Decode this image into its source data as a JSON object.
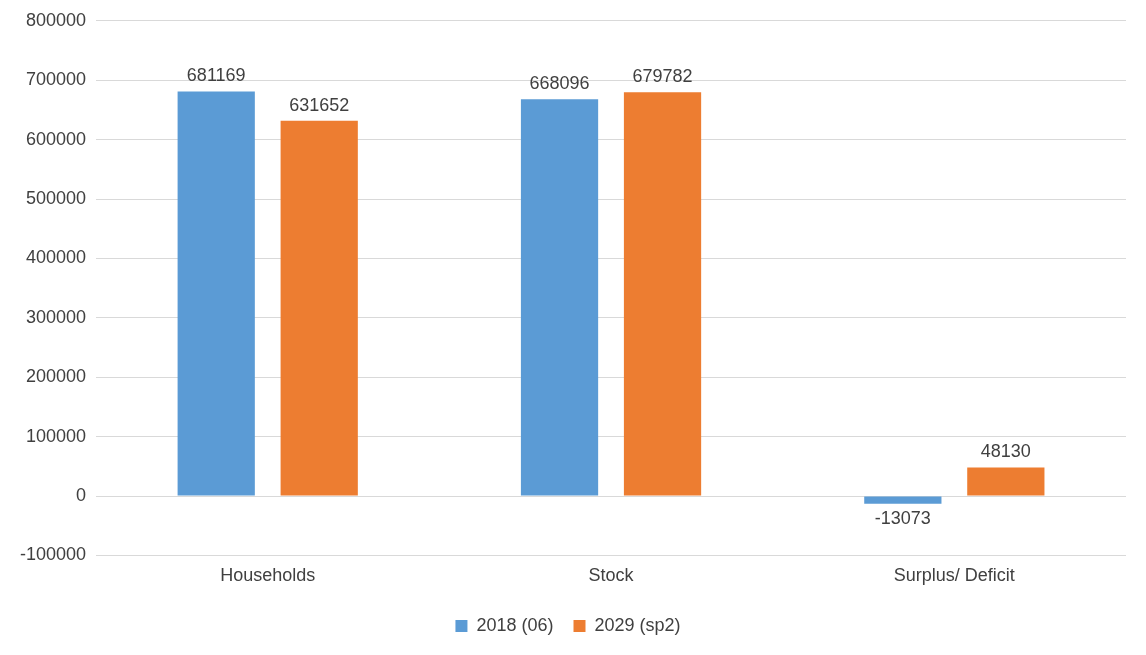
{
  "chart_data": {
    "type": "bar",
    "categories": [
      "Households",
      "Stock",
      "Surplus/ Deficit"
    ],
    "series": [
      {
        "name": "2018 (06)",
        "color": "#5b9bd5",
        "values": [
          681169,
          668096,
          -13073
        ]
      },
      {
        "name": "2029 (sp2)",
        "color": "#ed7d31",
        "values": [
          631652,
          679782,
          48130
        ]
      }
    ],
    "ylim": [
      -100000,
      800000
    ],
    "yticks": [
      -100000,
      0,
      100000,
      200000,
      300000,
      400000,
      500000,
      600000,
      700000,
      800000
    ],
    "grid": "y",
    "legend": "bottom",
    "data_labels": true
  }
}
